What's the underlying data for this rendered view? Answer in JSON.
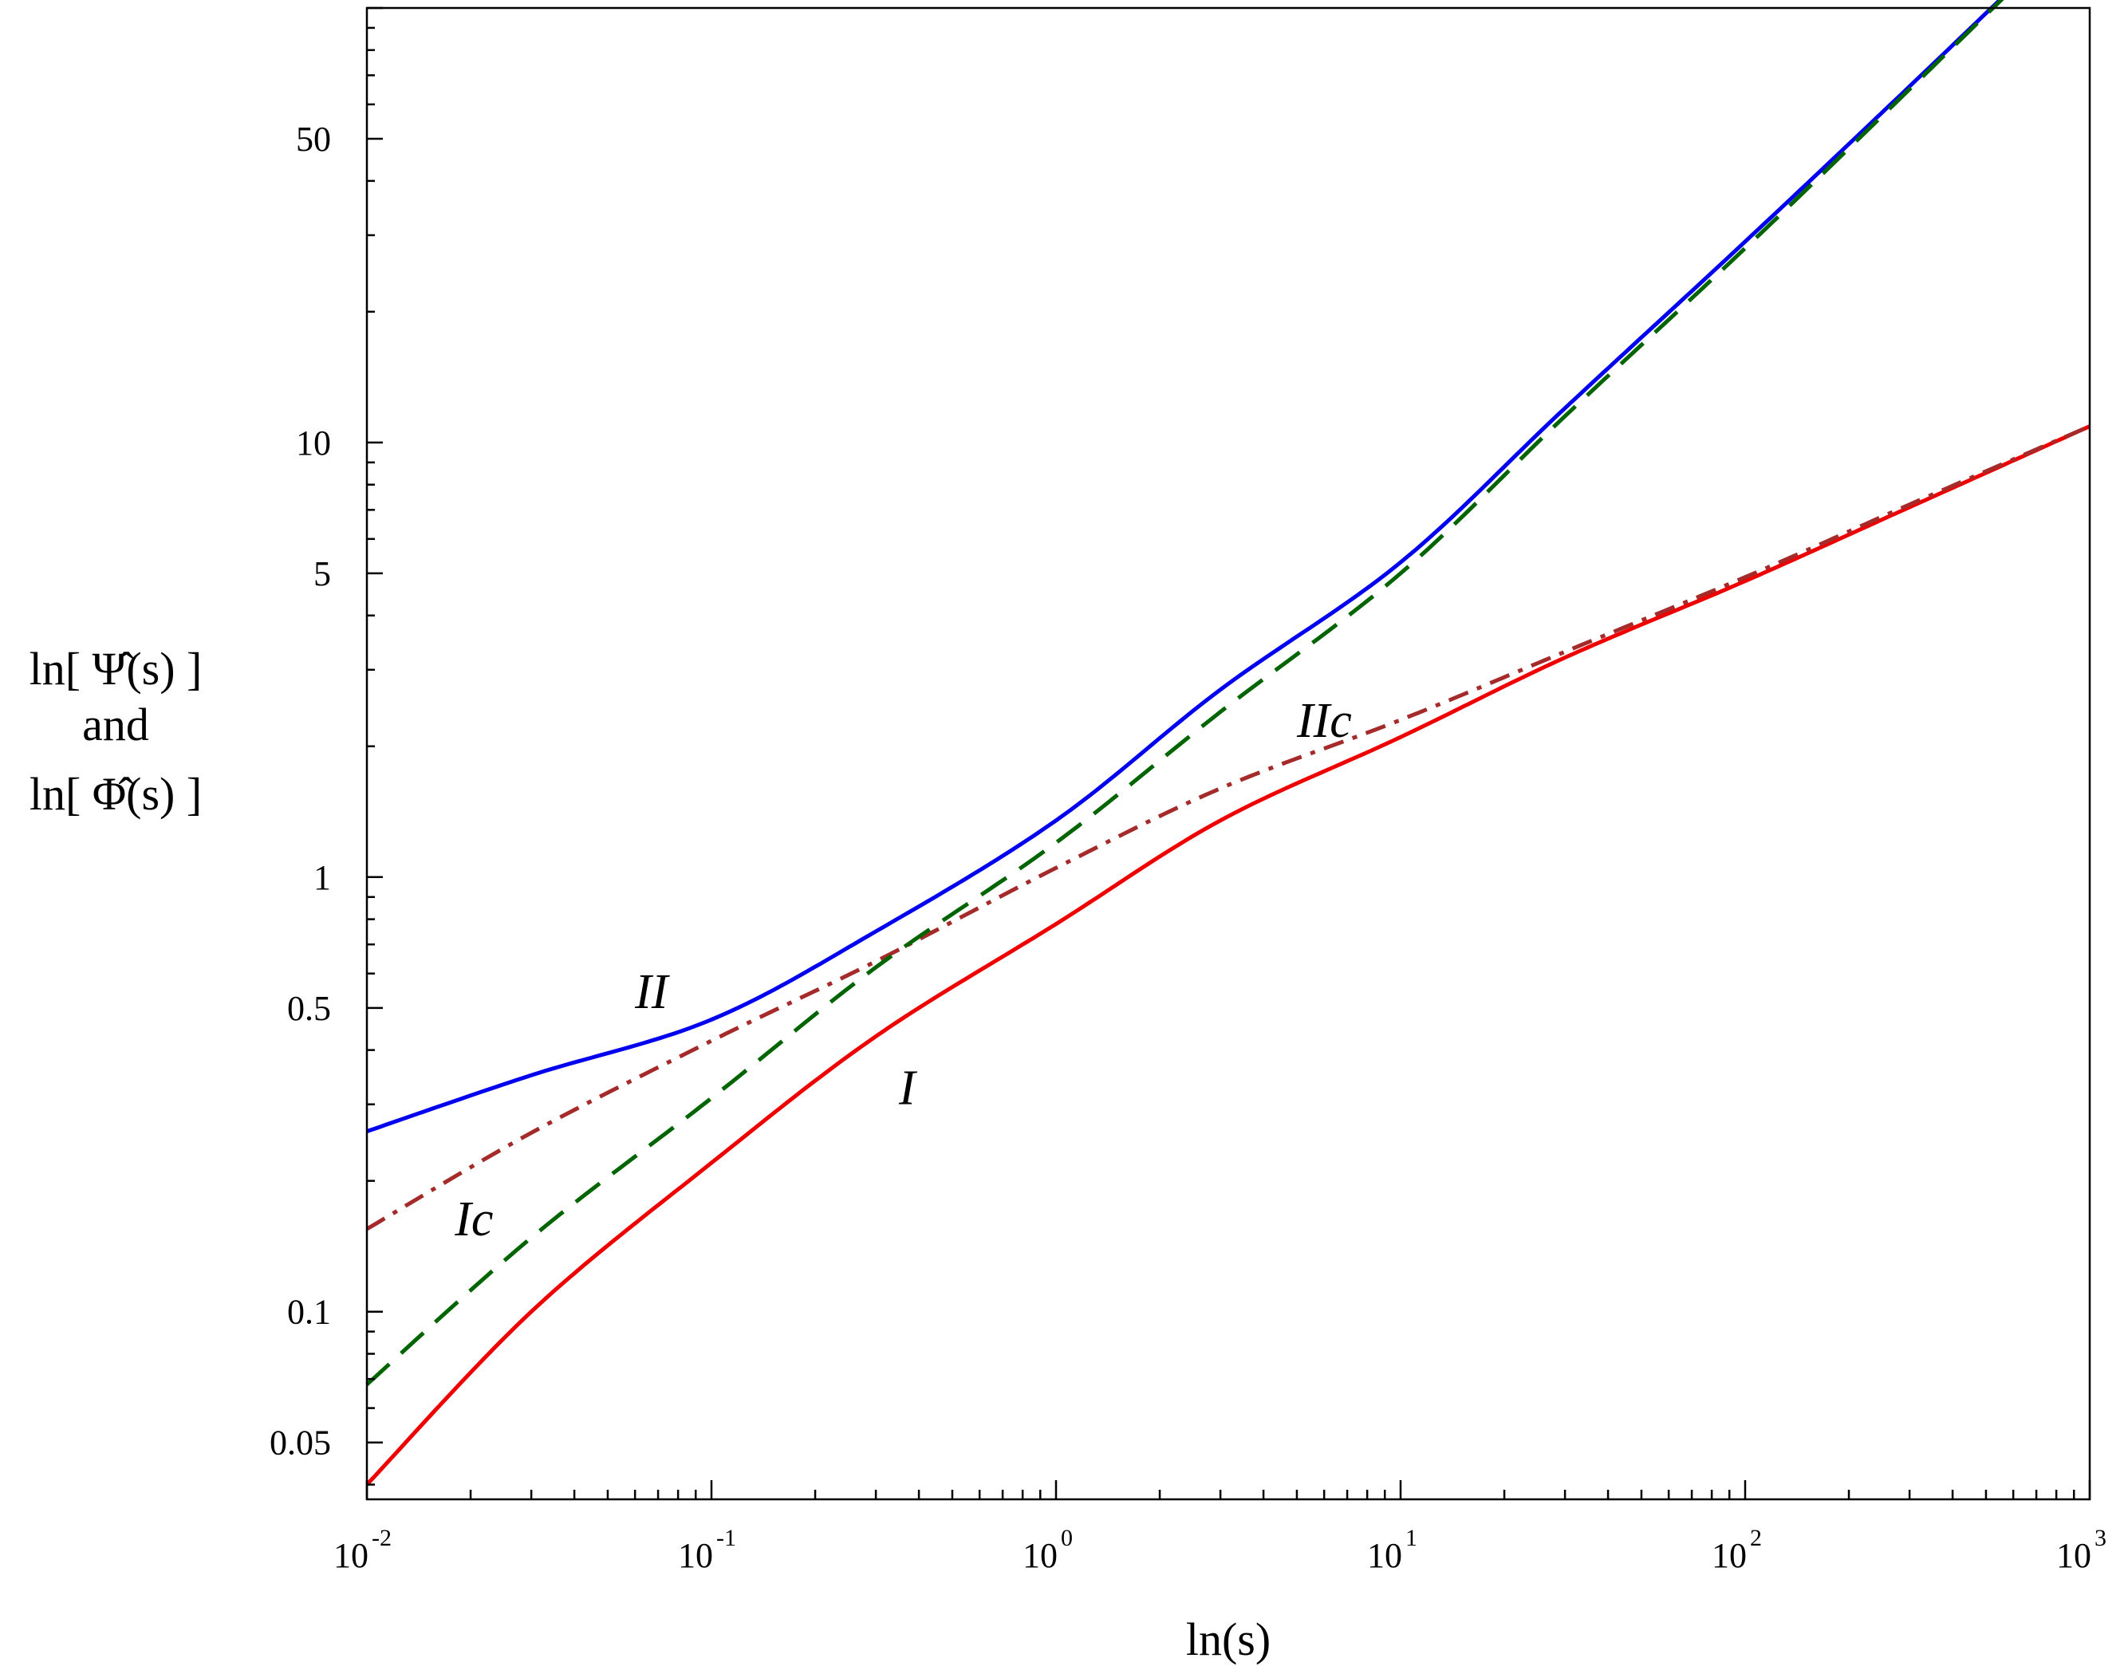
{
  "chart_data": {
    "type": "line",
    "xscale": "log",
    "yscale": "log",
    "xlim": [
      0.01,
      1000
    ],
    "ylim": [
      0.037,
      100
    ],
    "xlabel": "ln(s)",
    "ylabel_lines": [
      "ln[ Ψ̂(s) ]",
      "and",
      "ln[ Φ̂(s) ]"
    ],
    "xticks": [
      {
        "value": 0.01,
        "base": "10",
        "exp": "-2"
      },
      {
        "value": 0.1,
        "base": "10",
        "exp": "-1"
      },
      {
        "value": 1,
        "base": "10",
        "exp": "0"
      },
      {
        "value": 10,
        "base": "10",
        "exp": "1"
      },
      {
        "value": 100,
        "base": "10",
        "exp": "2"
      },
      {
        "value": 1000,
        "base": "10",
        "exp": "3"
      }
    ],
    "yticks": [
      {
        "value": 0.05,
        "label": "0.05"
      },
      {
        "value": 0.1,
        "label": "0.1"
      },
      {
        "value": 0.5,
        "label": "0.5"
      },
      {
        "value": 1,
        "label": "1"
      },
      {
        "value": 5,
        "label": "5"
      },
      {
        "value": 10,
        "label": "10"
      },
      {
        "value": 50,
        "label": "50"
      }
    ],
    "grid": false,
    "legend": "none",
    "series": [
      {
        "name": "II",
        "color": "#0000ee",
        "style": "solid",
        "x": [
          0.01,
          0.03,
          0.1,
          0.3,
          1,
          3,
          10,
          30,
          100,
          300,
          1000
        ],
        "y": [
          0.26,
          0.35,
          0.47,
          0.75,
          1.35,
          2.7,
          5.3,
          12.0,
          29,
          66,
          165
        ]
      },
      {
        "name": "I",
        "color": "#ee0000",
        "style": "solid",
        "x": [
          0.01,
          0.03,
          0.1,
          0.3,
          1,
          3,
          10,
          30,
          100,
          300,
          1000
        ],
        "y": [
          0.04,
          0.1,
          0.22,
          0.43,
          0.78,
          1.35,
          2.1,
          3.2,
          4.8,
          7.1,
          10.9
        ]
      },
      {
        "name": "Ic",
        "color": "#a52a2a",
        "style": "dashdot",
        "x": [
          0.01,
          0.03,
          0.1,
          0.3,
          1,
          3,
          10,
          30,
          100,
          300,
          1000
        ],
        "y": [
          0.155,
          0.258,
          0.42,
          0.64,
          1.05,
          1.6,
          2.3,
          3.3,
          4.9,
          7.2,
          10.9
        ]
      },
      {
        "name": "IIc",
        "color": "#006400",
        "style": "dashed",
        "x": [
          0.01,
          0.03,
          0.1,
          0.3,
          1,
          3,
          10,
          30,
          100,
          300,
          1000
        ],
        "y": [
          0.068,
          0.148,
          0.31,
          0.62,
          1.2,
          2.4,
          5.0,
          11.5,
          28,
          65,
          165
        ]
      }
    ],
    "annotations": [
      {
        "text": "II",
        "x": 0.06,
        "y": 0.5
      },
      {
        "text": "I",
        "x": 0.35,
        "y": 0.3
      },
      {
        "text": "Ic",
        "x": 0.018,
        "y": 0.15
      },
      {
        "text": "IIc",
        "x": 5.0,
        "y": 2.1
      }
    ]
  }
}
